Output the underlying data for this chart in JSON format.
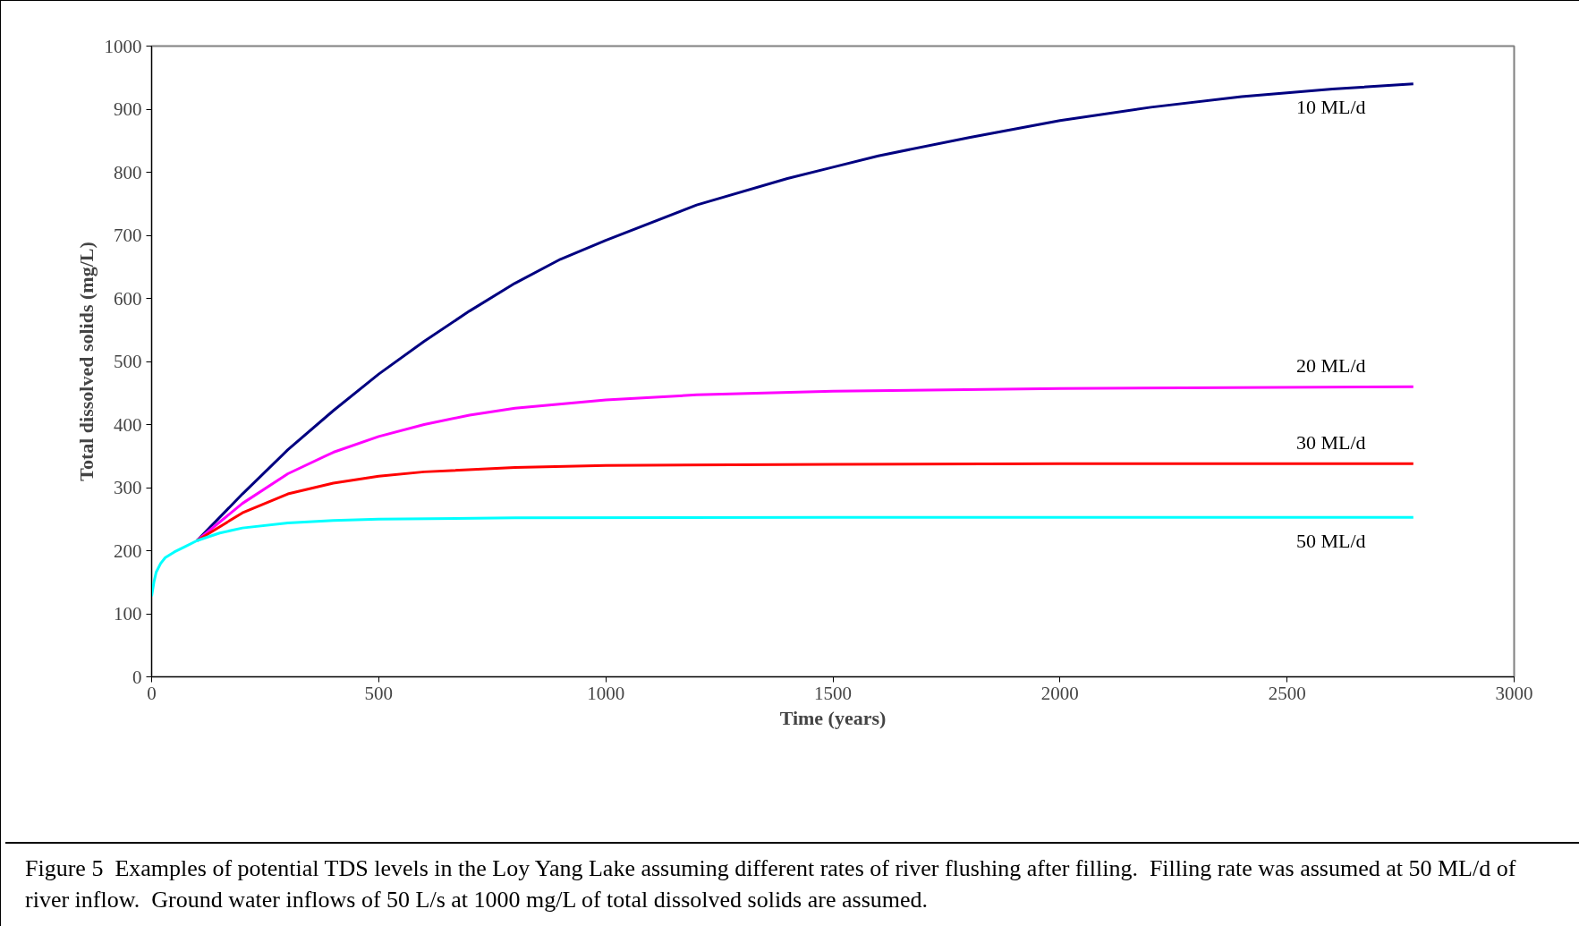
{
  "chart_data": {
    "type": "line",
    "xlabel": "Time (years)",
    "ylabel": "Total dissolved solids (mg/L)",
    "xlim": [
      0,
      3000
    ],
    "xticks": [
      0,
      500,
      1000,
      1500,
      2000,
      2500,
      3000
    ],
    "ylim": [
      0,
      1000
    ],
    "yticks": [
      0,
      100,
      200,
      300,
      400,
      500,
      600,
      700,
      800,
      900,
      1000
    ],
    "grid": false,
    "marker": "none",
    "line_style": "solid",
    "series": [
      {
        "name": "10 ML/d",
        "color": "#000080",
        "x": [
          100,
          200,
          300,
          400,
          500,
          600,
          700,
          800,
          900,
          1000,
          1200,
          1400,
          1500,
          1600,
          1800,
          2000,
          2200,
          2400,
          2600,
          2778
        ],
        "values": [
          216,
          290,
          360,
          422,
          480,
          532,
          580,
          624,
          662,
          692,
          748,
          790,
          808,
          826,
          855,
          882,
          903,
          920,
          932,
          940
        ]
      },
      {
        "name": "20 ML/d",
        "color": "#ff00ff",
        "x": [
          100,
          200,
          300,
          400,
          500,
          600,
          700,
          800,
          1000,
          1200,
          1500,
          2000,
          2778
        ],
        "values": [
          216,
          275,
          322,
          356,
          381,
          400,
          415,
          426,
          439,
          447,
          453,
          457,
          460
        ]
      },
      {
        "name": "30 ML/d",
        "color": "#ff0000",
        "x": [
          100,
          200,
          300,
          400,
          500,
          600,
          800,
          1000,
          1500,
          2000,
          2778
        ],
        "values": [
          216,
          260,
          290,
          307,
          318,
          325,
          332,
          335,
          337,
          338,
          338
        ]
      },
      {
        "name": "50 ML/d",
        "color": "#00ffff",
        "x": [
          0,
          5,
          10,
          20,
          30,
          50,
          75,
          100,
          150,
          200,
          300,
          400,
          500,
          800,
          1500,
          2778
        ],
        "values": [
          128,
          150,
          166,
          180,
          189,
          198,
          207,
          216,
          228,
          236,
          244,
          248,
          250,
          252,
          253,
          253
        ]
      }
    ],
    "annotations": [
      "Figure 5  Examples of potential TDS levels in the Loy Yang Lake assuming different rates of river flushing after filling.  Filling rate was assumed at 50 ML/d of river inflow.  Ground water inflows of 50 L/s at 1000 mg/L of total dissolved solids are assumed."
    ]
  }
}
